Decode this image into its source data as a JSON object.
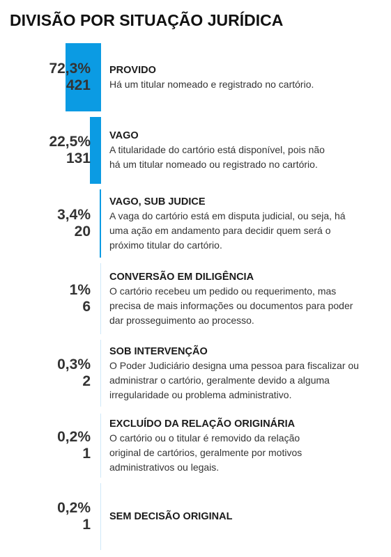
{
  "title": "DIVISÃO POR SITUAÇÃO JURÍDICA",
  "colors": {
    "bar": "#0b9be3",
    "track": "#cfe8f8"
  },
  "chart_data": {
    "type": "bar",
    "orientation": "vertical-width-encoded",
    "categories": [
      "PROVIDO",
      "VAGO",
      "VAGO, SUB JUDICE",
      "CONVERSÃO EM DILIGÊNCIA",
      "SOB INTERVENÇÃO",
      "EXCLUÍDO DA RELAÇÃO ORIGINÁRIA",
      "SEM DECISÃO ORIGINAL"
    ],
    "values": [
      72.3,
      22.5,
      3.4,
      1,
      0.3,
      0.2,
      0.2
    ],
    "counts": [
      421,
      131,
      20,
      6,
      2,
      1,
      1
    ],
    "percent_labels": [
      "72,3%",
      "22,5%",
      "3,4%",
      "1%",
      "0,3%",
      "0,2%",
      "0,2%"
    ],
    "count_labels": [
      "421",
      "131",
      "20",
      "6",
      "2",
      "1",
      "1"
    ],
    "descriptions": [
      "Há um titular nomeado e registrado no cartório.",
      "A titularidade do cartório está disponível, pois não\nhá um titular nomeado ou registrado no cartório.",
      "A vaga do cartório está em disputa judicial, ou seja, há\numa ação em andamento para decidir quem será o\npróximo titular do cartório.",
      "O cartório recebeu um pedido ou requerimento, mas\nprecisa de mais informações ou documentos para poder\ndar prosseguimento ao processo.",
      "O Poder Judiciário designa uma pessoa para fiscalizar ou\nadministrar o cartório, geralmente devido a alguma\nirregularidade ou problema administrativo.",
      "O cartório ou o titular é removido da relação\noriginal de cartórios, geralmente por motivos\nadministrativos ou legais.",
      ""
    ]
  }
}
